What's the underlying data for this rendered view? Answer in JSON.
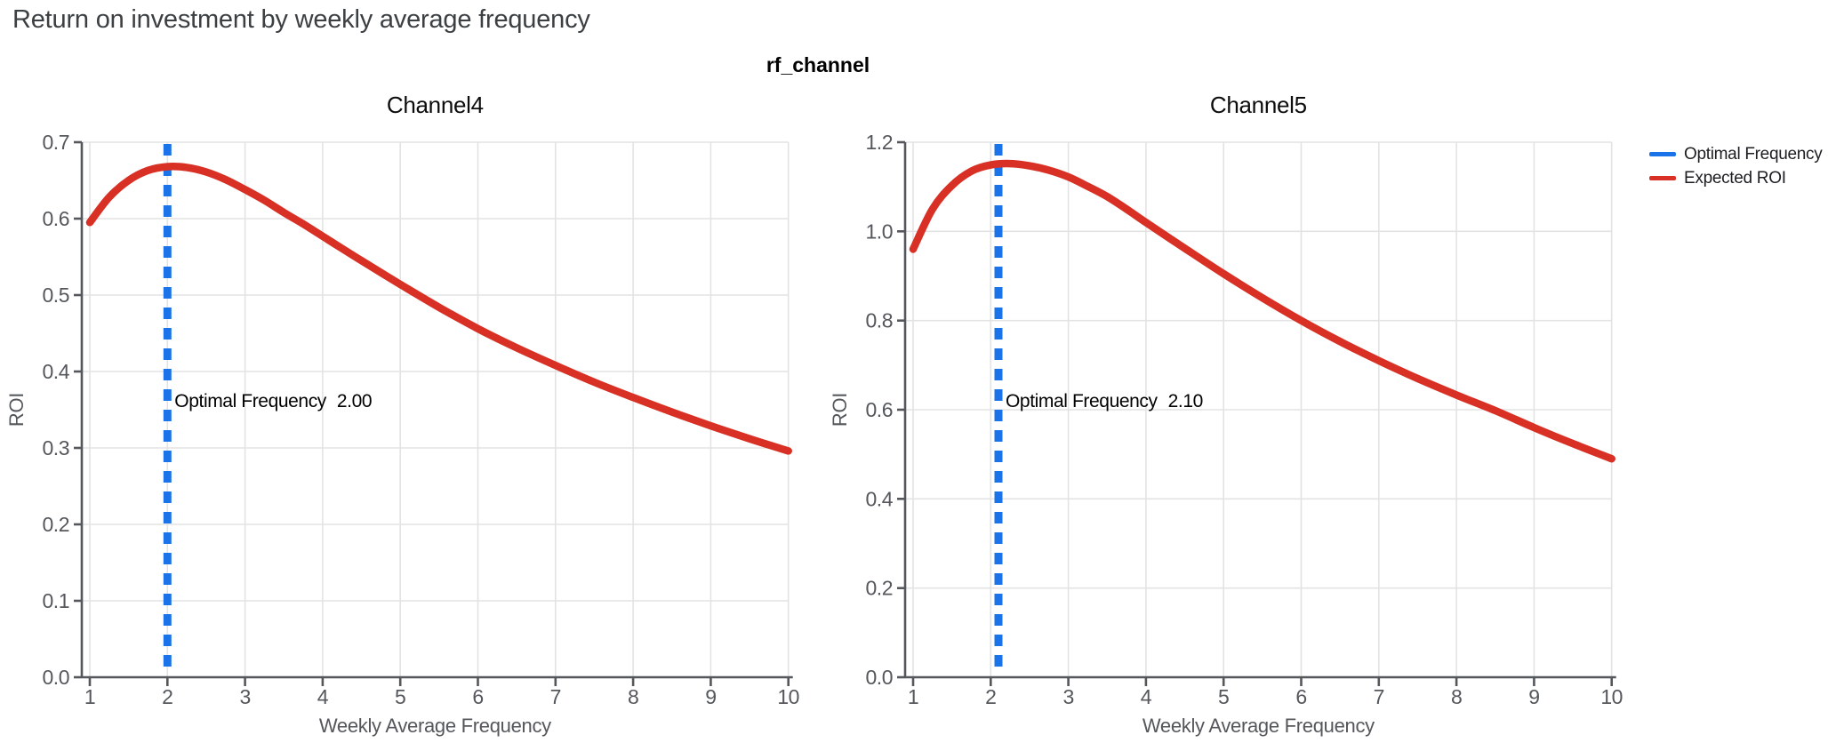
{
  "figure": {
    "title": "Return on investment by weekly average frequency",
    "facet_title": "rf_channel"
  },
  "legend": {
    "items": [
      {
        "label": "Optimal Frequency",
        "color": "#1A73E8"
      },
      {
        "label": "Expected ROI",
        "color": "#D93025"
      }
    ]
  },
  "colors": {
    "expected_roi": "#D93025",
    "optimal_frequency": "#1A73E8",
    "grid": "#E3E3E3",
    "axis": "#54575B",
    "annotation_text": "#000000",
    "title_text": "#3C4043"
  },
  "chart_data": [
    {
      "type": "line",
      "title": "Channel4",
      "xlabel": "Weekly Average Frequency",
      "ylabel": "ROI",
      "xlim": [
        1,
        10
      ],
      "ylim": [
        0,
        0.7
      ],
      "xticks": [
        1,
        2,
        3,
        4,
        5,
        6,
        7,
        8,
        9,
        10
      ],
      "yticks": [
        0.0,
        0.1,
        0.2,
        0.3,
        0.4,
        0.5,
        0.6,
        0.7
      ],
      "ytick_labels": [
        "0.0",
        "0.1",
        "0.2",
        "0.3",
        "0.4",
        "0.5",
        "0.6",
        "0.7"
      ],
      "grid": true,
      "optimal_frequency": {
        "x": 2.0,
        "label": "Optimal Frequency",
        "value_text": "2.00"
      },
      "series": [
        {
          "name": "Expected ROI",
          "x": [
            1,
            1.25,
            1.5,
            1.75,
            2,
            2.25,
            2.5,
            2.75,
            3,
            3.25,
            3.5,
            3.75,
            4,
            4.5,
            5,
            5.5,
            6,
            6.5,
            7,
            7.5,
            8,
            8.5,
            9,
            9.5,
            10
          ],
          "y": [
            0.595,
            0.628,
            0.65,
            0.663,
            0.668,
            0.667,
            0.661,
            0.651,
            0.638,
            0.624,
            0.608,
            0.593,
            0.577,
            0.545,
            0.514,
            0.484,
            0.456,
            0.431,
            0.408,
            0.386,
            0.366,
            0.347,
            0.329,
            0.312,
            0.296
          ]
        }
      ]
    },
    {
      "type": "line",
      "title": "Channel5",
      "xlabel": "Weekly Average Frequency",
      "ylabel": "ROI",
      "xlim": [
        1,
        10
      ],
      "ylim": [
        0,
        1.2
      ],
      "xticks": [
        1,
        2,
        3,
        4,
        5,
        6,
        7,
        8,
        9,
        10
      ],
      "yticks": [
        0.0,
        0.2,
        0.4,
        0.6,
        0.8,
        1.0,
        1.2
      ],
      "ytick_labels": [
        "0.0",
        "0.2",
        "0.4",
        "0.6",
        "0.8",
        "1.0",
        "1.2"
      ],
      "grid": true,
      "optimal_frequency": {
        "x": 2.1,
        "label": "Optimal Frequency",
        "value_text": "2.10"
      },
      "series": [
        {
          "name": "Expected ROI",
          "x": [
            1,
            1.25,
            1.5,
            1.75,
            2,
            2.25,
            2.5,
            2.75,
            3,
            3.25,
            3.5,
            3.75,
            4,
            4.5,
            5,
            5.5,
            6,
            6.5,
            7,
            7.5,
            8,
            8.5,
            9,
            9.5,
            10
          ],
          "y": [
            0.96,
            1.05,
            1.103,
            1.135,
            1.149,
            1.152,
            1.147,
            1.137,
            1.122,
            1.101,
            1.078,
            1.05,
            1.02,
            0.962,
            0.905,
            0.851,
            0.8,
            0.753,
            0.71,
            0.67,
            0.633,
            0.598,
            0.56,
            0.524,
            0.49
          ]
        }
      ]
    }
  ]
}
